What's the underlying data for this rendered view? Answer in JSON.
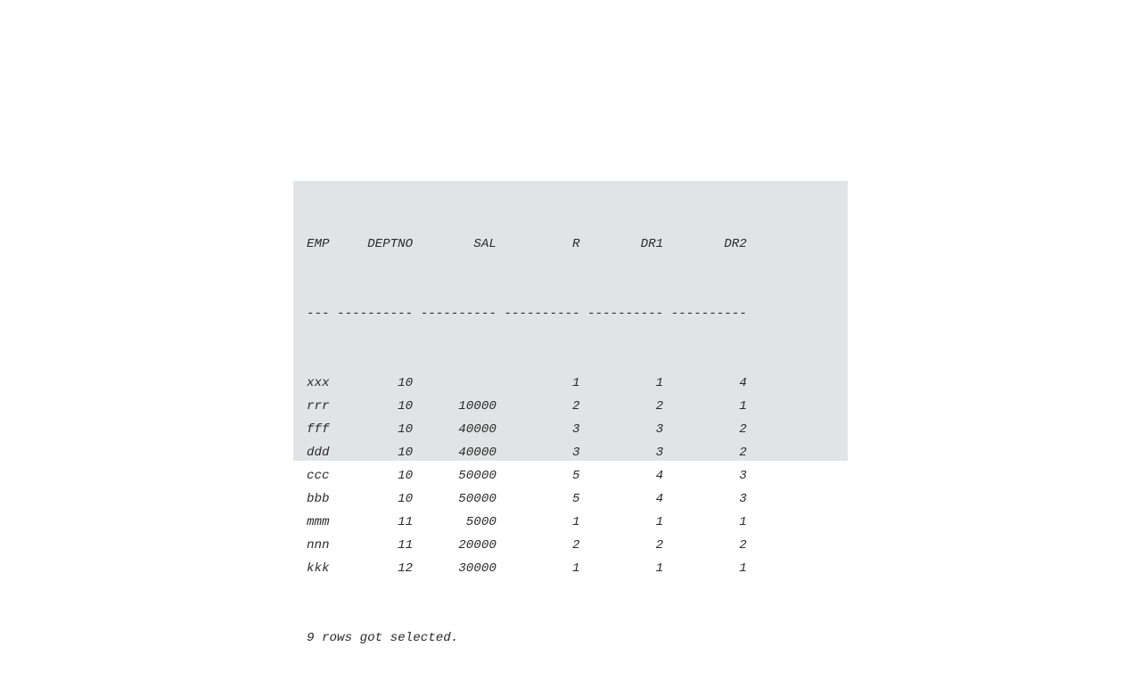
{
  "header": "EMP     DEPTNO        SAL          R        DR1        DR2",
  "separator": "--- ---------- ---------- ---------- ---------- ----------",
  "columns": [
    "EMP",
    "DEPTNO",
    "SAL",
    "R",
    "DR1",
    "DR2"
  ],
  "rows": [
    {
      "emp": "xxx",
      "deptno": "10",
      "sal": "",
      "r": "1",
      "dr1": "1",
      "dr2": "4"
    },
    {
      "emp": "rrr",
      "deptno": "10",
      "sal": "10000",
      "r": "2",
      "dr1": "2",
      "dr2": "1"
    },
    {
      "emp": "fff",
      "deptno": "10",
      "sal": "40000",
      "r": "3",
      "dr1": "3",
      "dr2": "2"
    },
    {
      "emp": "ddd",
      "deptno": "10",
      "sal": "40000",
      "r": "3",
      "dr1": "3",
      "dr2": "2"
    },
    {
      "emp": "ccc",
      "deptno": "10",
      "sal": "50000",
      "r": "5",
      "dr1": "4",
      "dr2": "3"
    },
    {
      "emp": "bbb",
      "deptno": "10",
      "sal": "50000",
      "r": "5",
      "dr1": "4",
      "dr2": "3"
    },
    {
      "emp": "mmm",
      "deptno": "11",
      "sal": "5000",
      "r": "1",
      "dr1": "1",
      "dr2": "1"
    },
    {
      "emp": "nnn",
      "deptno": "11",
      "sal": "20000",
      "r": "2",
      "dr1": "2",
      "dr2": "2"
    },
    {
      "emp": "kkk",
      "deptno": "12",
      "sal": "30000",
      "r": "1",
      "dr1": "1",
      "dr2": "1"
    }
  ],
  "footer": "9 rows got selected."
}
